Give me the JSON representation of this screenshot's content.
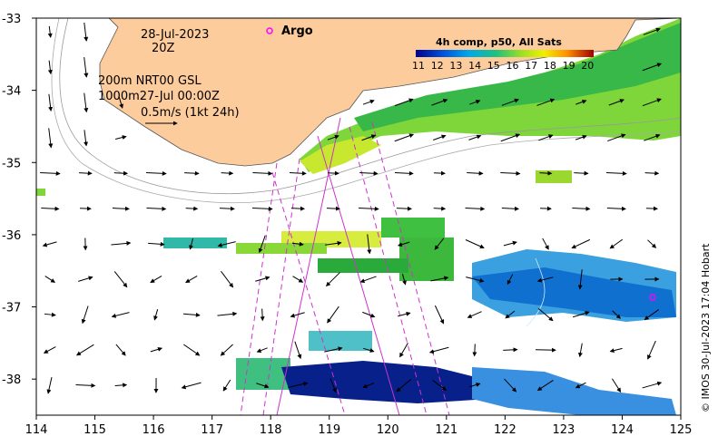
{
  "map": {
    "date_line1": "28-Jul-2023",
    "date_line2": "20Z",
    "argo_label": "Argo",
    "depth_line1": "200m  NRT00 GSL",
    "depth_line2": "1000m27-Jul 00:00Z",
    "scale_label": "0.5m/s (1kt 24h)",
    "colorbar_title": "4h comp, p50, All Sats",
    "colorbar_ticks": [
      "11",
      "12",
      "13",
      "14",
      "15",
      "16",
      "17",
      "18",
      "19",
      "20"
    ],
    "credit": "© IMOS 30-Jul-2023 17:04 Hobart",
    "lon_ticks": [
      "114",
      "115",
      "116",
      "117",
      "118",
      "119",
      "120",
      "121",
      "122",
      "123",
      "124",
      "125"
    ],
    "lat_ticks": [
      "-33",
      "-34",
      "-35",
      "-36",
      "-37",
      "-38"
    ],
    "lon_range": [
      114,
      125
    ],
    "lat_range": [
      -38.5,
      -33
    ],
    "colors": {
      "land": "#fdcc9c",
      "argo": "#ff00ff",
      "track": "#cc33cc"
    }
  }
}
